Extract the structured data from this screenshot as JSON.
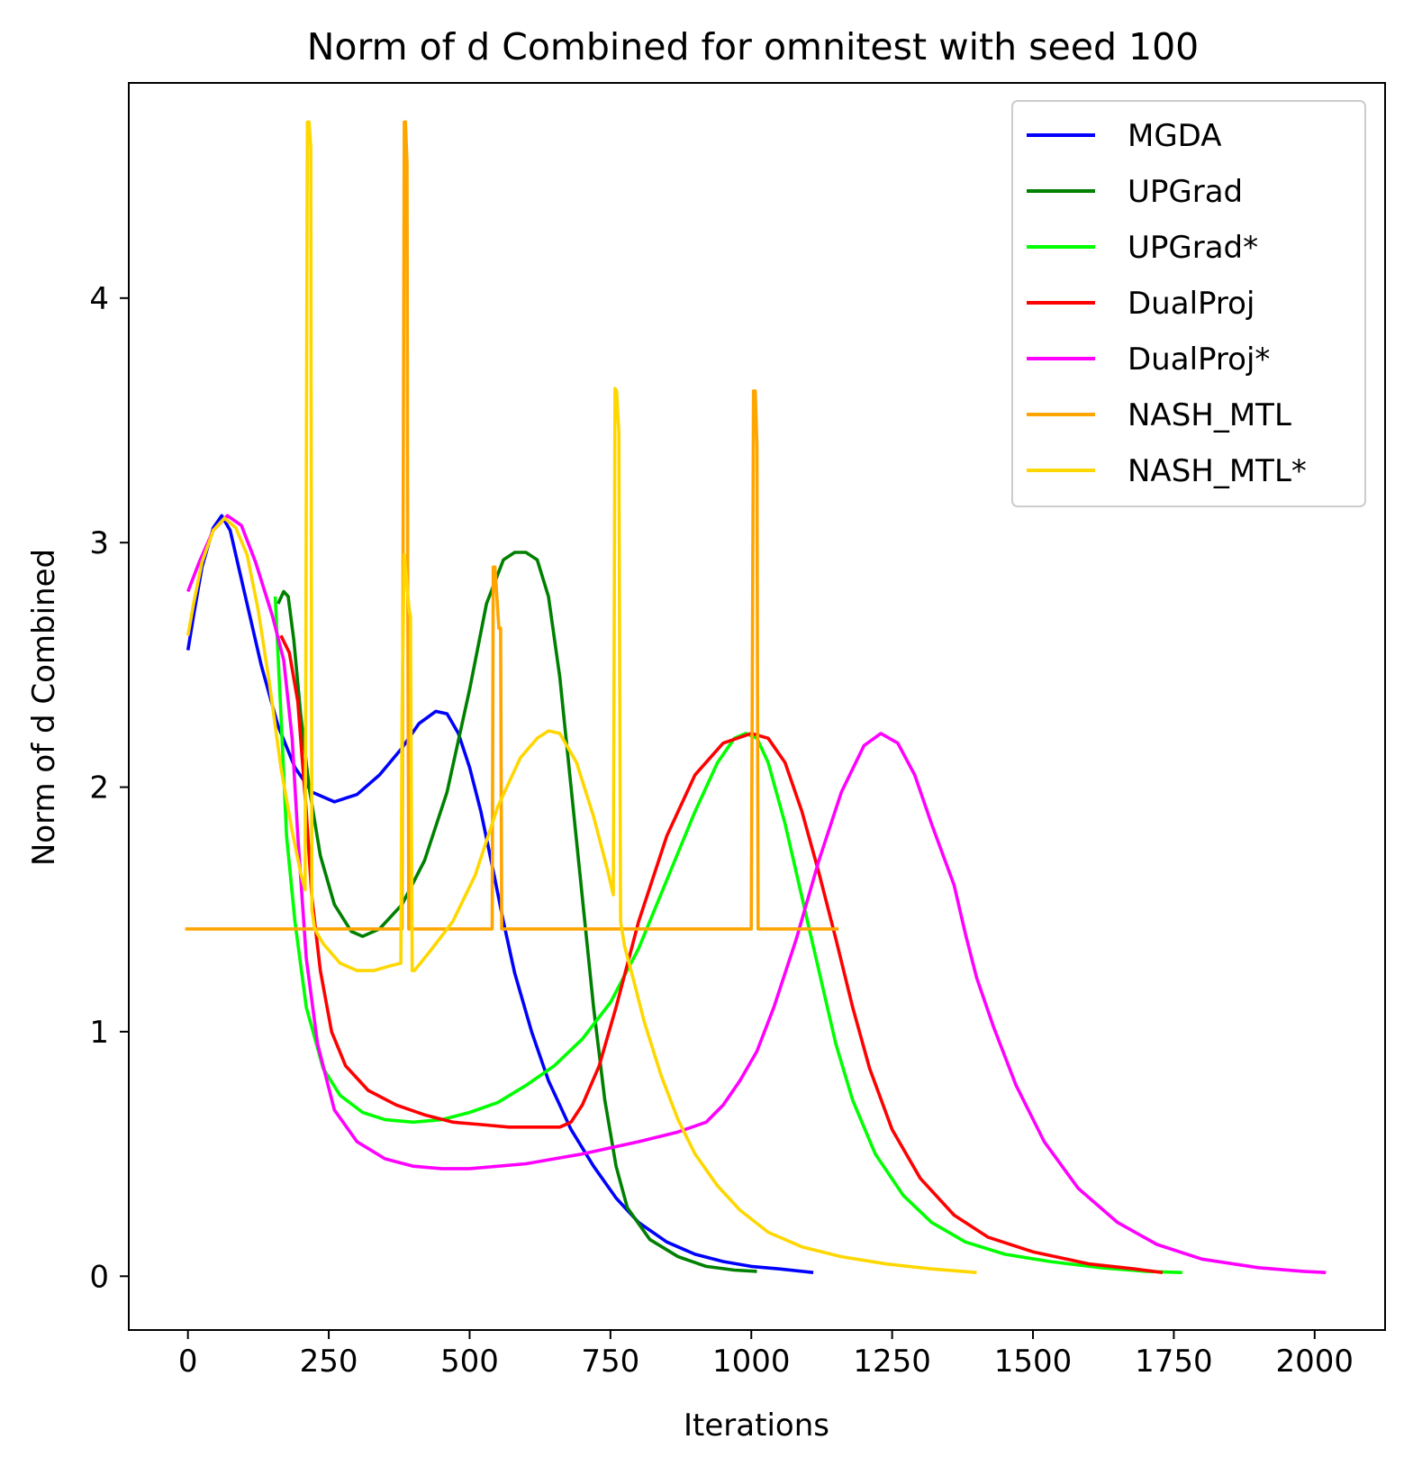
{
  "chart_data": {
    "type": "line",
    "title": "Norm of d Combined for omnitest with seed 100",
    "xlabel": "Iterations",
    "ylabel": "Norm of d Combined",
    "xlim": [
      -105,
      2125
    ],
    "ylim": [
      -0.22,
      4.88
    ],
    "xticks": [
      0,
      250,
      500,
      750,
      1000,
      1250,
      1500,
      1750,
      2000
    ],
    "yticks": [
      0,
      1,
      2,
      3,
      4
    ],
    "grid": false,
    "legend_position": "upper right",
    "series": [
      {
        "name": "MGDA",
        "color": "#0000ff",
        "points": [
          [
            0,
            2.56
          ],
          [
            10,
            2.7
          ],
          [
            25,
            2.9
          ],
          [
            45,
            3.06
          ],
          [
            60,
            3.11
          ],
          [
            75,
            3.05
          ],
          [
            100,
            2.8
          ],
          [
            130,
            2.5
          ],
          [
            160,
            2.25
          ],
          [
            190,
            2.08
          ],
          [
            220,
            1.98
          ],
          [
            260,
            1.94
          ],
          [
            300,
            1.97
          ],
          [
            340,
            2.05
          ],
          [
            380,
            2.16
          ],
          [
            410,
            2.26
          ],
          [
            440,
            2.31
          ],
          [
            460,
            2.3
          ],
          [
            480,
            2.22
          ],
          [
            500,
            2.08
          ],
          [
            520,
            1.9
          ],
          [
            540,
            1.68
          ],
          [
            560,
            1.45
          ],
          [
            580,
            1.24
          ],
          [
            610,
            1.0
          ],
          [
            640,
            0.8
          ],
          [
            680,
            0.6
          ],
          [
            720,
            0.45
          ],
          [
            760,
            0.32
          ],
          [
            800,
            0.22
          ],
          [
            850,
            0.14
          ],
          [
            900,
            0.09
          ],
          [
            950,
            0.06
          ],
          [
            1000,
            0.04
          ],
          [
            1050,
            0.03
          ],
          [
            1110,
            0.015
          ]
        ]
      },
      {
        "name": "UPGrad",
        "color": "#008000",
        "points": [
          [
            160,
            2.75
          ],
          [
            170,
            2.8
          ],
          [
            178,
            2.78
          ],
          [
            188,
            2.6
          ],
          [
            200,
            2.3
          ],
          [
            215,
            2.0
          ],
          [
            235,
            1.72
          ],
          [
            260,
            1.52
          ],
          [
            290,
            1.41
          ],
          [
            310,
            1.39
          ],
          [
            340,
            1.42
          ],
          [
            380,
            1.52
          ],
          [
            420,
            1.7
          ],
          [
            460,
            1.98
          ],
          [
            500,
            2.4
          ],
          [
            530,
            2.75
          ],
          [
            560,
            2.93
          ],
          [
            580,
            2.96
          ],
          [
            600,
            2.96
          ],
          [
            620,
            2.93
          ],
          [
            640,
            2.78
          ],
          [
            660,
            2.45
          ],
          [
            680,
            2.0
          ],
          [
            700,
            1.55
          ],
          [
            720,
            1.1
          ],
          [
            740,
            0.72
          ],
          [
            760,
            0.45
          ],
          [
            780,
            0.28
          ],
          [
            820,
            0.15
          ],
          [
            870,
            0.08
          ],
          [
            920,
            0.04
          ],
          [
            970,
            0.025
          ],
          [
            1010,
            0.02
          ]
        ]
      },
      {
        "name": "UPGrad*",
        "color": "#00ff00",
        "points": [
          [
            155,
            2.78
          ],
          [
            165,
            2.3
          ],
          [
            175,
            1.8
          ],
          [
            190,
            1.45
          ],
          [
            210,
            1.1
          ],
          [
            240,
            0.85
          ],
          [
            270,
            0.74
          ],
          [
            310,
            0.67
          ],
          [
            350,
            0.64
          ],
          [
            400,
            0.63
          ],
          [
            450,
            0.64
          ],
          [
            500,
            0.67
          ],
          [
            550,
            0.71
          ],
          [
            600,
            0.78
          ],
          [
            650,
            0.86
          ],
          [
            700,
            0.97
          ],
          [
            750,
            1.12
          ],
          [
            800,
            1.34
          ],
          [
            850,
            1.62
          ],
          [
            900,
            1.9
          ],
          [
            940,
            2.1
          ],
          [
            970,
            2.2
          ],
          [
            990,
            2.22
          ],
          [
            1010,
            2.2
          ],
          [
            1030,
            2.1
          ],
          [
            1060,
            1.85
          ],
          [
            1090,
            1.55
          ],
          [
            1120,
            1.25
          ],
          [
            1150,
            0.95
          ],
          [
            1180,
            0.72
          ],
          [
            1220,
            0.5
          ],
          [
            1270,
            0.33
          ],
          [
            1320,
            0.22
          ],
          [
            1380,
            0.14
          ],
          [
            1450,
            0.09
          ],
          [
            1530,
            0.06
          ],
          [
            1620,
            0.035
          ],
          [
            1700,
            0.02
          ],
          [
            1765,
            0.015
          ]
        ]
      },
      {
        "name": "DualProj",
        "color": "#ff0000",
        "points": [
          [
            165,
            2.62
          ],
          [
            180,
            2.55
          ],
          [
            195,
            2.35
          ],
          [
            210,
            1.9
          ],
          [
            220,
            1.55
          ],
          [
            235,
            1.25
          ],
          [
            255,
            1.0
          ],
          [
            280,
            0.86
          ],
          [
            320,
            0.76
          ],
          [
            370,
            0.7
          ],
          [
            420,
            0.66
          ],
          [
            470,
            0.63
          ],
          [
            520,
            0.62
          ],
          [
            570,
            0.61
          ],
          [
            620,
            0.61
          ],
          [
            660,
            0.61
          ],
          [
            680,
            0.63
          ],
          [
            700,
            0.7
          ],
          [
            730,
            0.86
          ],
          [
            760,
            1.1
          ],
          [
            800,
            1.45
          ],
          [
            850,
            1.8
          ],
          [
            900,
            2.05
          ],
          [
            950,
            2.18
          ],
          [
            1000,
            2.22
          ],
          [
            1030,
            2.2
          ],
          [
            1060,
            2.1
          ],
          [
            1090,
            1.9
          ],
          [
            1120,
            1.65
          ],
          [
            1150,
            1.38
          ],
          [
            1180,
            1.1
          ],
          [
            1210,
            0.85
          ],
          [
            1250,
            0.6
          ],
          [
            1300,
            0.4
          ],
          [
            1360,
            0.25
          ],
          [
            1420,
            0.16
          ],
          [
            1500,
            0.1
          ],
          [
            1600,
            0.05
          ],
          [
            1680,
            0.03
          ],
          [
            1730,
            0.015
          ]
        ]
      },
      {
        "name": "DualProj*",
        "color": "#ff00ff",
        "points": [
          [
            0,
            2.8
          ],
          [
            20,
            2.92
          ],
          [
            45,
            3.05
          ],
          [
            70,
            3.11
          ],
          [
            95,
            3.07
          ],
          [
            120,
            2.92
          ],
          [
            150,
            2.7
          ],
          [
            170,
            2.52
          ],
          [
            185,
            2.2
          ],
          [
            195,
            1.8
          ],
          [
            210,
            1.3
          ],
          [
            230,
            0.95
          ],
          [
            260,
            0.68
          ],
          [
            300,
            0.55
          ],
          [
            350,
            0.48
          ],
          [
            400,
            0.45
          ],
          [
            450,
            0.44
          ],
          [
            500,
            0.44
          ],
          [
            600,
            0.46
          ],
          [
            700,
            0.5
          ],
          [
            800,
            0.55
          ],
          [
            870,
            0.59
          ],
          [
            920,
            0.63
          ],
          [
            950,
            0.7
          ],
          [
            980,
            0.8
          ],
          [
            1010,
            0.92
          ],
          [
            1040,
            1.1
          ],
          [
            1080,
            1.38
          ],
          [
            1120,
            1.7
          ],
          [
            1160,
            1.98
          ],
          [
            1200,
            2.17
          ],
          [
            1230,
            2.22
          ],
          [
            1260,
            2.18
          ],
          [
            1290,
            2.05
          ],
          [
            1320,
            1.85
          ],
          [
            1360,
            1.6
          ],
          [
            1380,
            1.4
          ],
          [
            1400,
            1.22
          ],
          [
            1430,
            1.02
          ],
          [
            1470,
            0.78
          ],
          [
            1520,
            0.55
          ],
          [
            1580,
            0.36
          ],
          [
            1650,
            0.22
          ],
          [
            1720,
            0.13
          ],
          [
            1800,
            0.07
          ],
          [
            1900,
            0.035
          ],
          [
            1980,
            0.02
          ],
          [
            2020,
            0.015
          ]
        ]
      },
      {
        "name": "NASH_MTL",
        "color": "#ffa500",
        "points": [
          [
            -5,
            1.42
          ],
          [
            380,
            1.42
          ],
          [
            384,
            4.72
          ],
          [
            386,
            4.72
          ],
          [
            389,
            4.55
          ],
          [
            390,
            2.9
          ],
          [
            392,
            1.42
          ],
          [
            540,
            1.42
          ],
          [
            542,
            2.9
          ],
          [
            545,
            2.9
          ],
          [
            552,
            2.65
          ],
          [
            555,
            2.65
          ],
          [
            557,
            1.42
          ],
          [
            1000,
            1.42
          ],
          [
            1004,
            3.62
          ],
          [
            1007,
            3.62
          ],
          [
            1010,
            3.4
          ],
          [
            1012,
            1.42
          ],
          [
            1155,
            1.42
          ]
        ]
      },
      {
        "name": "NASH_MTL*",
        "color": "#ffd700",
        "points": [
          [
            0,
            2.62
          ],
          [
            10,
            2.75
          ],
          [
            25,
            2.92
          ],
          [
            45,
            3.05
          ],
          [
            65,
            3.1
          ],
          [
            85,
            3.06
          ],
          [
            105,
            2.95
          ],
          [
            125,
            2.72
          ],
          [
            145,
            2.42
          ],
          [
            165,
            2.08
          ],
          [
            185,
            1.82
          ],
          [
            200,
            1.65
          ],
          [
            208,
            1.58
          ],
          [
            212,
            4.72
          ],
          [
            215,
            4.72
          ],
          [
            218,
            4.62
          ],
          [
            220,
            1.5
          ],
          [
            225,
            1.42
          ],
          [
            240,
            1.36
          ],
          [
            270,
            1.28
          ],
          [
            300,
            1.25
          ],
          [
            330,
            1.25
          ],
          [
            360,
            1.27
          ],
          [
            378,
            1.28
          ],
          [
            380,
            2.3
          ],
          [
            384,
            2.95
          ],
          [
            388,
            2.85
          ],
          [
            393,
            2.72
          ],
          [
            395,
            2.7
          ],
          [
            398,
            1.25
          ],
          [
            402,
            1.25
          ],
          [
            430,
            1.33
          ],
          [
            470,
            1.45
          ],
          [
            510,
            1.64
          ],
          [
            550,
            1.92
          ],
          [
            590,
            2.12
          ],
          [
            620,
            2.2
          ],
          [
            640,
            2.23
          ],
          [
            660,
            2.22
          ],
          [
            690,
            2.1
          ],
          [
            720,
            1.88
          ],
          [
            745,
            1.66
          ],
          [
            755,
            1.56
          ],
          [
            758,
            3.63
          ],
          [
            761,
            3.62
          ],
          [
            765,
            3.45
          ],
          [
            768,
            1.45
          ],
          [
            775,
            1.35
          ],
          [
            790,
            1.22
          ],
          [
            810,
            1.04
          ],
          [
            840,
            0.82
          ],
          [
            870,
            0.64
          ],
          [
            900,
            0.5
          ],
          [
            940,
            0.37
          ],
          [
            980,
            0.27
          ],
          [
            1030,
            0.18
          ],
          [
            1090,
            0.12
          ],
          [
            1160,
            0.08
          ],
          [
            1240,
            0.05
          ],
          [
            1320,
            0.03
          ],
          [
            1400,
            0.015
          ]
        ]
      }
    ]
  }
}
